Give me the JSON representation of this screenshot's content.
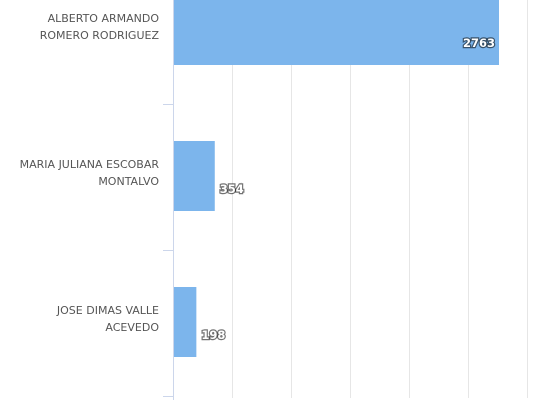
{
  "chart_data": {
    "type": "bar",
    "orientation": "horizontal",
    "categories": [
      [
        "ALBERTO ARMANDO",
        "ROMERO RODRIGUEZ"
      ],
      [
        "MARIA JULIANA ESCOBAR",
        "MONTALVO"
      ],
      [
        "JOSE DIMAS VALLE",
        "ACEVEDO"
      ]
    ],
    "values": [
      2763,
      354,
      198
    ],
    "value_labels": [
      "2763",
      "354",
      "198"
    ],
    "xlim": [
      0,
      3000
    ],
    "gridline_step": 500,
    "bar_color": "#7cb5ec",
    "gridline_color": "#e6e6e6",
    "grid": true,
    "legend": "none"
  }
}
